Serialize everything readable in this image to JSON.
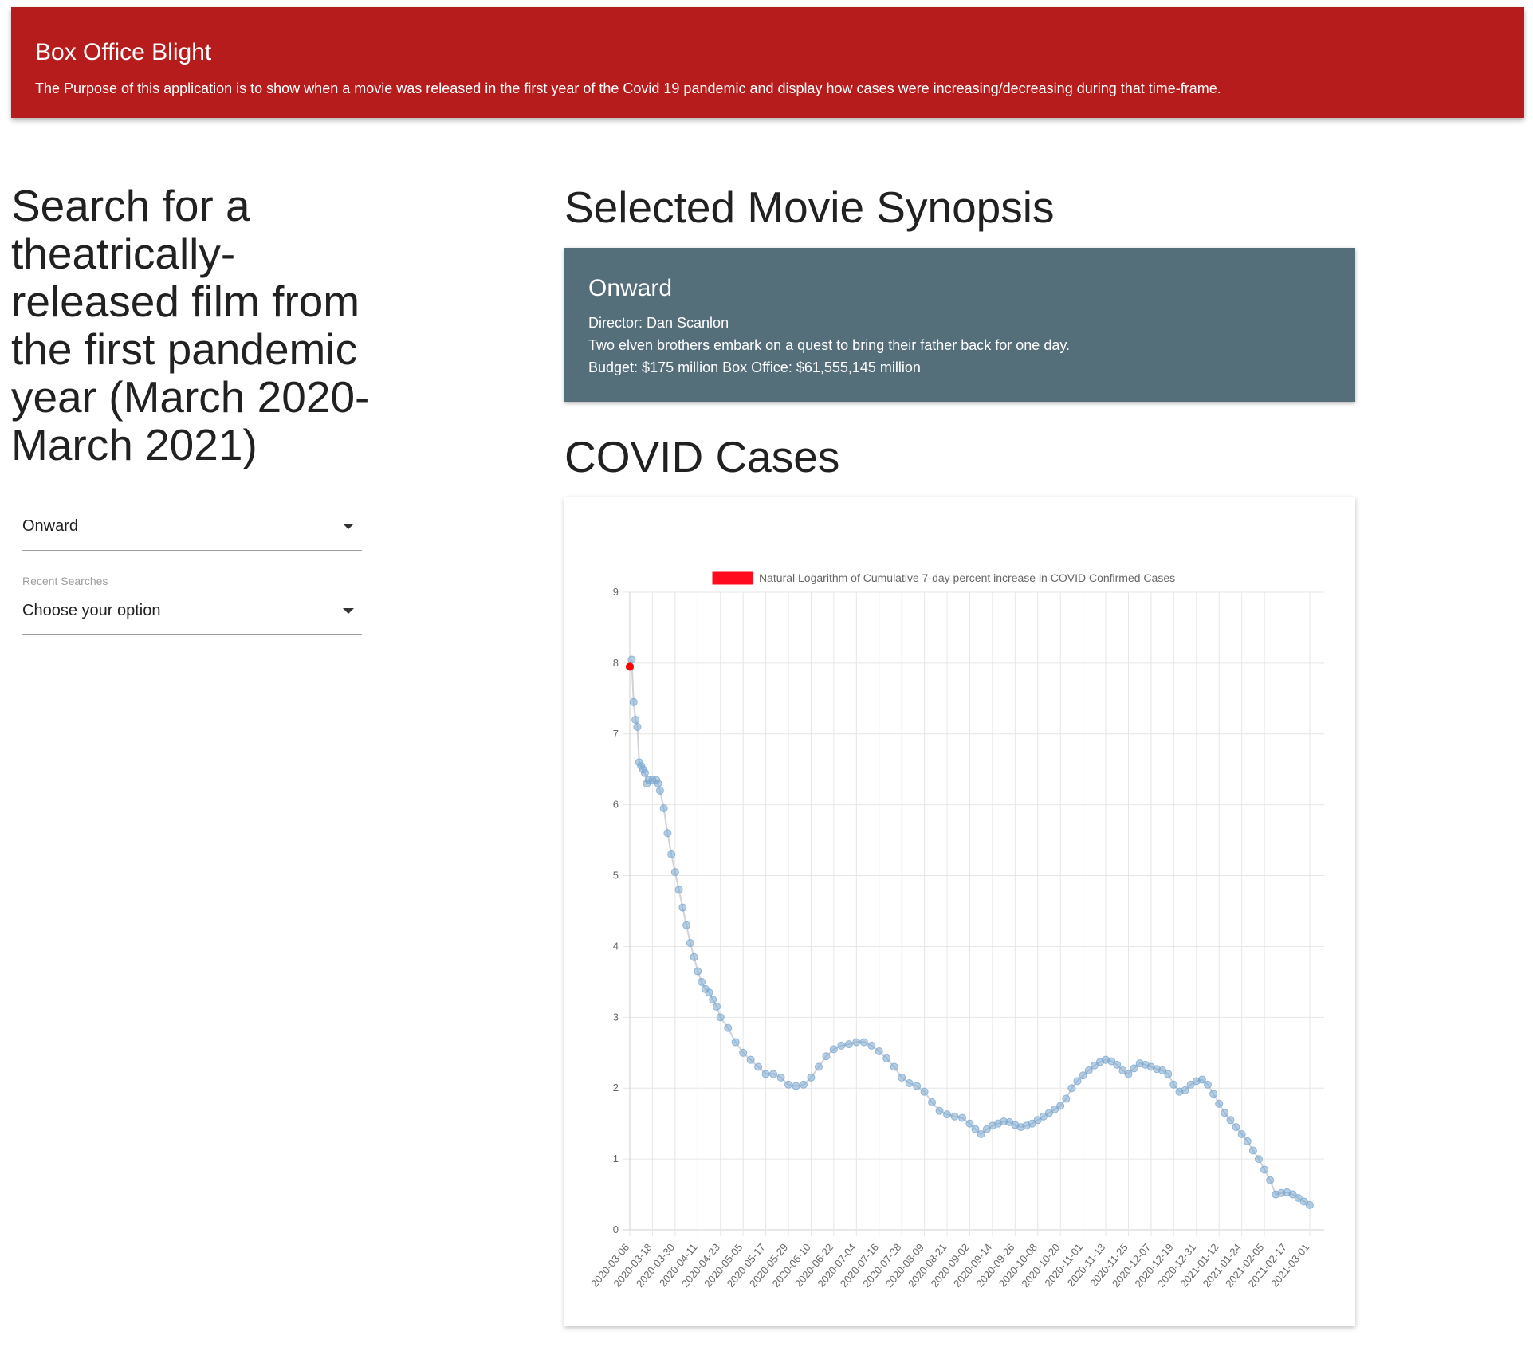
{
  "header": {
    "title": "Box Office Blight",
    "description": "The Purpose of this application is to show when a movie was released in the first year of the Covid 19 pandemic and display how cases were increasing/decreasing during that time-frame."
  },
  "search": {
    "heading": "Search for a theatrically-released film from the first pandemic year (March 2020-March 2021)",
    "movie_select_value": "Onward",
    "recent_label": "Recent Searches",
    "recent_select_value": "Choose your option"
  },
  "synopsis": {
    "heading": "Selected Movie Synopsis",
    "movie_title": "Onward",
    "director": "Director: Dan Scanlon",
    "plot": "Two elven brothers embark on a quest to bring their father back for one day.",
    "budget": "Budget: $175 million Box Office: $61,555,145 million"
  },
  "covid": {
    "heading": "COVID Cases"
  },
  "colors": {
    "header_bg": "#b71c1c",
    "card_bg": "#546e7a",
    "series_point": "#7aa7cf",
    "highlight_point": "#ff0000"
  },
  "chart_data": {
    "type": "line",
    "title": "",
    "xlabel": "",
    "ylabel": "",
    "legend": "Natural Logarithm of Cumulative 7-day percent increase in COVID Confirmed Cases",
    "legend_position": "top",
    "ylim": [
      0,
      9
    ],
    "yticks": [
      0,
      1,
      2,
      3,
      4,
      5,
      6,
      7,
      8,
      9
    ],
    "grid": true,
    "xticks": [
      "2020-03-06",
      "2020-03-18",
      "2020-03-30",
      "2020-04-11",
      "2020-04-23",
      "2020-05-05",
      "2020-05-17",
      "2020-05-29",
      "2020-06-10",
      "2020-06-22",
      "2020-07-04",
      "2020-07-16",
      "2020-07-28",
      "2020-08-09",
      "2020-08-21",
      "2020-09-02",
      "2020-09-14",
      "2020-09-26",
      "2020-10-08",
      "2020-10-20",
      "2020-11-01",
      "2020-11-13",
      "2020-11-25",
      "2020-12-07",
      "2020-12-19",
      "2020-12-31",
      "2021-01-12",
      "2021-01-24",
      "2021-02-05",
      "2021-02-17",
      "2021-03-01"
    ],
    "series": [
      {
        "name": "Natural Logarithm of Cumulative 7-day percent increase in COVID Confirmed Cases",
        "points": [
          [
            "2020-03-06",
            7.95
          ],
          [
            "2020-03-07",
            8.05
          ],
          [
            "2020-03-08",
            7.45
          ],
          [
            "2020-03-09",
            7.2
          ],
          [
            "2020-03-10",
            7.1
          ],
          [
            "2020-03-11",
            6.6
          ],
          [
            "2020-03-12",
            6.55
          ],
          [
            "2020-03-13",
            6.5
          ],
          [
            "2020-03-14",
            6.45
          ],
          [
            "2020-03-15",
            6.3
          ],
          [
            "2020-03-16",
            6.35
          ],
          [
            "2020-03-18",
            6.35
          ],
          [
            "2020-03-20",
            6.35
          ],
          [
            "2020-03-21",
            6.3
          ],
          [
            "2020-03-22",
            6.2
          ],
          [
            "2020-03-24",
            5.95
          ],
          [
            "2020-03-26",
            5.6
          ],
          [
            "2020-03-28",
            5.3
          ],
          [
            "2020-03-30",
            5.05
          ],
          [
            "2020-04-01",
            4.8
          ],
          [
            "2020-04-03",
            4.55
          ],
          [
            "2020-04-05",
            4.3
          ],
          [
            "2020-04-07",
            4.05
          ],
          [
            "2020-04-09",
            3.85
          ],
          [
            "2020-04-11",
            3.65
          ],
          [
            "2020-04-13",
            3.5
          ],
          [
            "2020-04-15",
            3.4
          ],
          [
            "2020-04-17",
            3.35
          ],
          [
            "2020-04-19",
            3.25
          ],
          [
            "2020-04-21",
            3.15
          ],
          [
            "2020-04-23",
            3.0
          ],
          [
            "2020-04-27",
            2.85
          ],
          [
            "2020-05-01",
            2.65
          ],
          [
            "2020-05-05",
            2.5
          ],
          [
            "2020-05-09",
            2.4
          ],
          [
            "2020-05-13",
            2.3
          ],
          [
            "2020-05-17",
            2.2
          ],
          [
            "2020-05-21",
            2.2
          ],
          [
            "2020-05-25",
            2.15
          ],
          [
            "2020-05-29",
            2.05
          ],
          [
            "2020-06-02",
            2.03
          ],
          [
            "2020-06-06",
            2.05
          ],
          [
            "2020-06-10",
            2.15
          ],
          [
            "2020-06-14",
            2.3
          ],
          [
            "2020-06-18",
            2.45
          ],
          [
            "2020-06-22",
            2.55
          ],
          [
            "2020-06-26",
            2.6
          ],
          [
            "2020-06-30",
            2.62
          ],
          [
            "2020-07-04",
            2.65
          ],
          [
            "2020-07-08",
            2.65
          ],
          [
            "2020-07-12",
            2.6
          ],
          [
            "2020-07-16",
            2.52
          ],
          [
            "2020-07-20",
            2.42
          ],
          [
            "2020-07-24",
            2.3
          ],
          [
            "2020-07-28",
            2.15
          ],
          [
            "2020-08-01",
            2.07
          ],
          [
            "2020-08-05",
            2.03
          ],
          [
            "2020-08-09",
            1.95
          ],
          [
            "2020-08-13",
            1.8
          ],
          [
            "2020-08-17",
            1.68
          ],
          [
            "2020-08-21",
            1.63
          ],
          [
            "2020-08-25",
            1.6
          ],
          [
            "2020-08-29",
            1.58
          ],
          [
            "2020-09-02",
            1.5
          ],
          [
            "2020-09-05",
            1.42
          ],
          [
            "2020-09-08",
            1.35
          ],
          [
            "2020-09-11",
            1.42
          ],
          [
            "2020-09-14",
            1.47
          ],
          [
            "2020-09-17",
            1.5
          ],
          [
            "2020-09-20",
            1.53
          ],
          [
            "2020-09-23",
            1.52
          ],
          [
            "2020-09-26",
            1.48
          ],
          [
            "2020-09-29",
            1.45
          ],
          [
            "2020-10-02",
            1.47
          ],
          [
            "2020-10-05",
            1.5
          ],
          [
            "2020-10-08",
            1.55
          ],
          [
            "2020-10-11",
            1.6
          ],
          [
            "2020-10-14",
            1.65
          ],
          [
            "2020-10-17",
            1.7
          ],
          [
            "2020-10-20",
            1.75
          ],
          [
            "2020-10-23",
            1.85
          ],
          [
            "2020-10-26",
            2.0
          ],
          [
            "2020-10-29",
            2.1
          ],
          [
            "2020-11-01",
            2.18
          ],
          [
            "2020-11-04",
            2.25
          ],
          [
            "2020-11-07",
            2.32
          ],
          [
            "2020-11-10",
            2.37
          ],
          [
            "2020-11-13",
            2.4
          ],
          [
            "2020-11-16",
            2.38
          ],
          [
            "2020-11-19",
            2.33
          ],
          [
            "2020-11-22",
            2.25
          ],
          [
            "2020-11-25",
            2.2
          ],
          [
            "2020-11-28",
            2.28
          ],
          [
            "2020-12-01",
            2.35
          ],
          [
            "2020-12-04",
            2.33
          ],
          [
            "2020-12-07",
            2.3
          ],
          [
            "2020-12-10",
            2.27
          ],
          [
            "2020-12-13",
            2.25
          ],
          [
            "2020-12-16",
            2.2
          ],
          [
            "2020-12-19",
            2.05
          ],
          [
            "2020-12-22",
            1.95
          ],
          [
            "2020-12-25",
            1.97
          ],
          [
            "2020-12-28",
            2.05
          ],
          [
            "2020-12-31",
            2.1
          ],
          [
            "2021-01-03",
            2.12
          ],
          [
            "2021-01-06",
            2.05
          ],
          [
            "2021-01-09",
            1.92
          ],
          [
            "2021-01-12",
            1.78
          ],
          [
            "2021-01-15",
            1.65
          ],
          [
            "2021-01-18",
            1.55
          ],
          [
            "2021-01-21",
            1.45
          ],
          [
            "2021-01-24",
            1.35
          ],
          [
            "2021-01-27",
            1.25
          ],
          [
            "2021-01-30",
            1.12
          ],
          [
            "2021-02-02",
            1.0
          ],
          [
            "2021-02-05",
            0.85
          ],
          [
            "2021-02-08",
            0.7
          ],
          [
            "2021-02-11",
            0.5
          ],
          [
            "2021-02-14",
            0.52
          ],
          [
            "2021-02-17",
            0.53
          ],
          [
            "2021-02-20",
            0.5
          ],
          [
            "2021-02-23",
            0.45
          ],
          [
            "2021-02-26",
            0.4
          ],
          [
            "2021-03-01",
            0.35
          ]
        ]
      }
    ],
    "highlight": {
      "x": "2020-03-06",
      "y": 7.95,
      "color": "#ff0000"
    }
  }
}
